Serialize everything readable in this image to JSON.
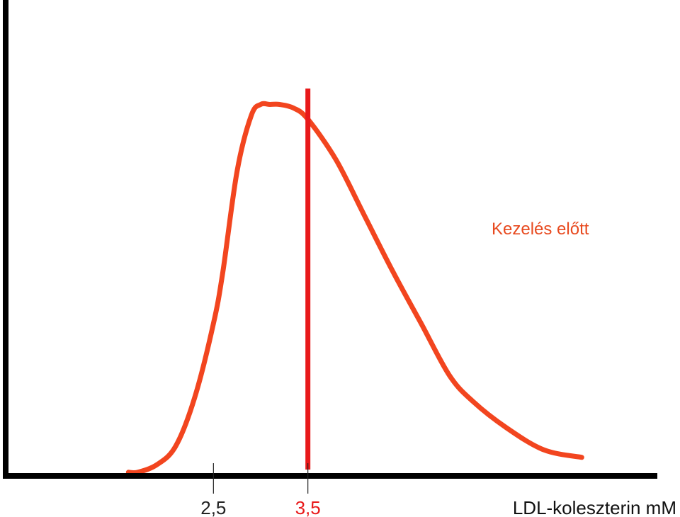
{
  "chart_data": {
    "type": "line",
    "title": "",
    "xlabel": "LDL-koleszterin mM",
    "ylabel": "",
    "grid": false,
    "xlim": [
      0.3,
      7.2
    ],
    "ylim": [
      0,
      1.1
    ],
    "series": [
      {
        "name": "Kezelés előtt",
        "color": "#f2451f",
        "x": [
          1.6,
          1.7,
          1.9,
          2.1,
          2.3,
          2.5,
          2.6,
          2.75,
          2.9,
          3.0,
          3.1,
          3.2,
          3.35,
          3.5,
          3.8,
          4.1,
          4.4,
          4.7,
          5.0,
          5.25,
          5.6,
          6.0,
          6.4
        ],
        "values": [
          0.01,
          0.01,
          0.03,
          0.08,
          0.21,
          0.41,
          0.55,
          0.82,
          0.97,
          1.0,
          1.0,
          1.0,
          0.99,
          0.96,
          0.85,
          0.7,
          0.55,
          0.41,
          0.27,
          0.2,
          0.13,
          0.07,
          0.05
        ]
      }
    ],
    "ticks": [
      {
        "label": "2,5",
        "x": 2.5,
        "color": "#222222"
      },
      {
        "label": "3,5",
        "x": 3.5,
        "color": "#e8191a"
      }
    ],
    "marker_line": {
      "x": 3.5,
      "color": "#e8191a"
    },
    "series_label_color": "#e84a1f",
    "axis_color": "#000000"
  }
}
